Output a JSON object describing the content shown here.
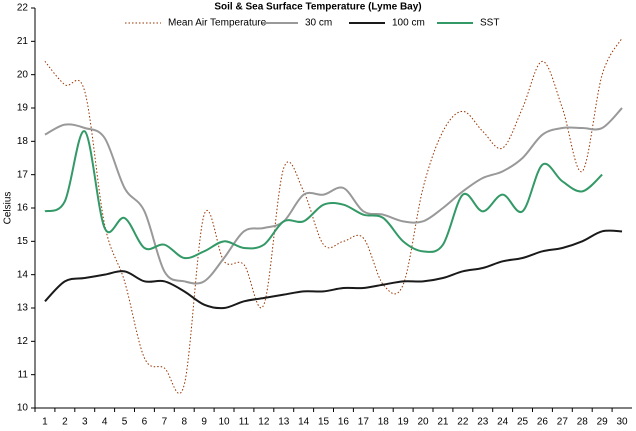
{
  "chart_data": {
    "type": "line",
    "title": "Soil & Sea Surface Temperature (Lyme Bay)",
    "y_label": "Celsius",
    "categories": [
      "1",
      "2",
      "3",
      "4",
      "5",
      "6",
      "7",
      "8",
      "9",
      "10",
      "11",
      "12",
      "13",
      "14",
      "15",
      "16",
      "17",
      "18",
      "19",
      "20",
      "21",
      "22",
      "23",
      "24",
      "25",
      "26",
      "27",
      "28",
      "29",
      "30"
    ],
    "series": [
      {
        "name": "Mean Air Temperature",
        "color": "#993300",
        "style": "dotted",
        "values": [
          20.4,
          19.7,
          19.5,
          15.5,
          13.8,
          11.5,
          11.2,
          10.7,
          15.8,
          14.4,
          14.3,
          13.1,
          17.2,
          16.5,
          14.9,
          15.0,
          15.1,
          13.7,
          13.7,
          16.6,
          18.3,
          18.9,
          18.3,
          17.8,
          19.0,
          20.4,
          19.0,
          17.1,
          20.0,
          21.1
        ]
      },
      {
        "name": "30 cm",
        "color": "#999999",
        "style": "solid",
        "values": [
          18.2,
          18.5,
          18.4,
          18.1,
          16.6,
          15.9,
          14.1,
          13.8,
          13.8,
          14.5,
          15.3,
          15.4,
          15.6,
          16.4,
          16.4,
          16.6,
          15.9,
          15.8,
          15.6,
          15.6,
          16.0,
          16.5,
          16.9,
          17.1,
          17.5,
          18.2,
          18.4,
          18.4,
          18.4,
          19.0
        ]
      },
      {
        "name": "100 cm",
        "color": "#1a1a1a",
        "style": "solid",
        "values": [
          13.2,
          13.8,
          13.9,
          14.0,
          14.1,
          13.8,
          13.8,
          13.5,
          13.1,
          13.0,
          13.2,
          13.3,
          13.4,
          13.5,
          13.5,
          13.6,
          13.6,
          13.7,
          13.8,
          13.8,
          13.9,
          14.1,
          14.2,
          14.4,
          14.5,
          14.7,
          14.8,
          15.0,
          15.3,
          15.3
        ]
      },
      {
        "name": "SST",
        "color": "#339966",
        "style": "solid",
        "values": [
          15.9,
          16.2,
          18.3,
          15.4,
          15.7,
          14.8,
          14.9,
          14.5,
          14.7,
          15.0,
          14.8,
          14.9,
          15.6,
          15.6,
          16.1,
          16.1,
          15.8,
          15.7,
          15.0,
          14.7,
          14.9,
          16.4,
          15.9,
          16.4,
          15.9,
          17.3,
          16.8,
          16.5,
          17.0,
          null
        ]
      }
    ],
    "ylim": [
      10,
      22
    ],
    "yticks": [
      10,
      11,
      12,
      13,
      14,
      15,
      16,
      17,
      18,
      19,
      20,
      21,
      22
    ],
    "grid": false,
    "legend": "top"
  }
}
